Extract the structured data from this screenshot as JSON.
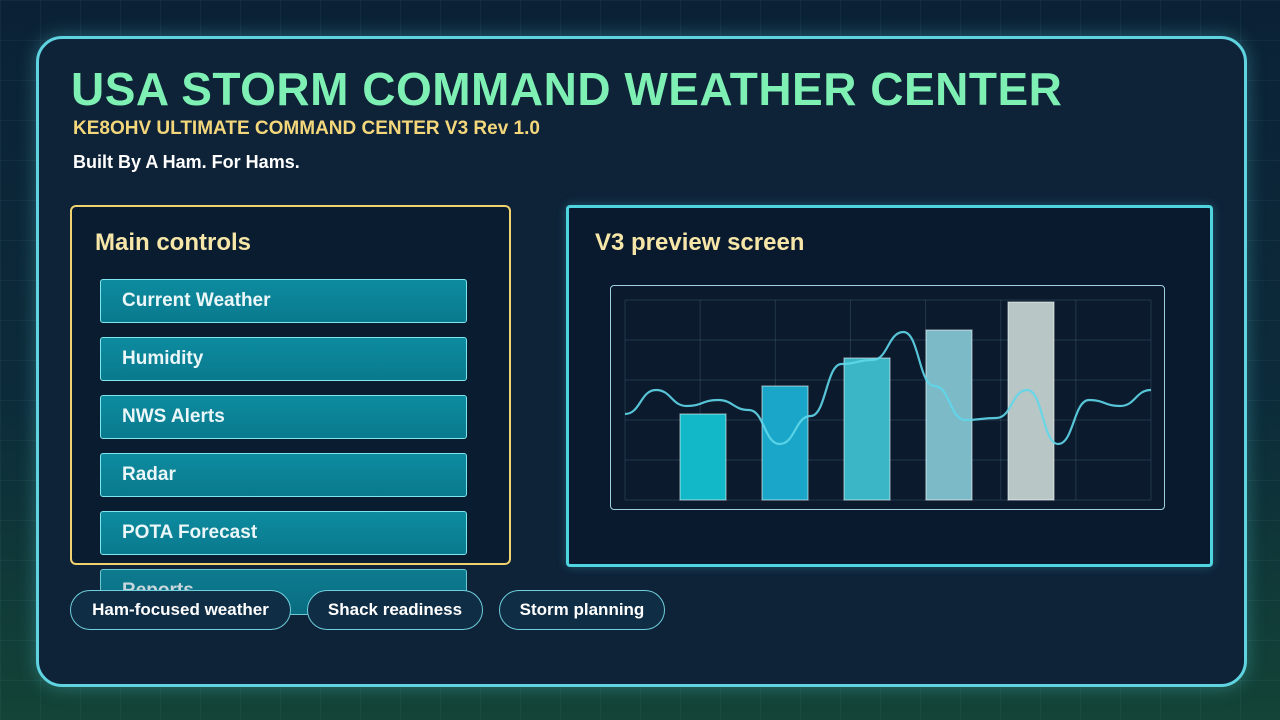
{
  "header": {
    "title": "USA STORM COMMAND WEATHER CENTER",
    "subtitle": "KE8OHV ULTIMATE COMMAND CENTER V3 Rev 1.0",
    "tagline": "Built By A Ham. For Hams."
  },
  "controls": {
    "heading": "Main controls",
    "buttons": [
      {
        "label": "Current Weather"
      },
      {
        "label": "Humidity"
      },
      {
        "label": "NWS Alerts"
      },
      {
        "label": "Radar"
      },
      {
        "label": "POTA Forecast"
      },
      {
        "label": "Reports"
      }
    ]
  },
  "preview": {
    "heading": "V3 preview screen"
  },
  "pills": [
    {
      "label": "Ham-focused weather"
    },
    {
      "label": "Shack readiness"
    },
    {
      "label": "Storm planning"
    }
  ],
  "chart_data": {
    "type": "bar",
    "bar_values": [
      0.43,
      0.57,
      0.71,
      0.85,
      0.99
    ],
    "bar_colors": [
      "#12b8c8",
      "#1aa6c8",
      "#3ab6c6",
      "#7cbac8",
      "#b8c6c6"
    ],
    "line_color": "#5fd7ea",
    "line_values": [
      0.43,
      0.55,
      0.47,
      0.5,
      0.45,
      0.28,
      0.42,
      0.68,
      0.7,
      0.84,
      0.57,
      0.4,
      0.41,
      0.55,
      0.28,
      0.5,
      0.47,
      0.55
    ],
    "ylim": [
      0,
      1
    ],
    "grid": true
  },
  "colors": {
    "title": "#7ff0b4",
    "subtitle": "#f3d77a",
    "accent": "#5fd3e0",
    "controls_border": "#f0d36e"
  }
}
